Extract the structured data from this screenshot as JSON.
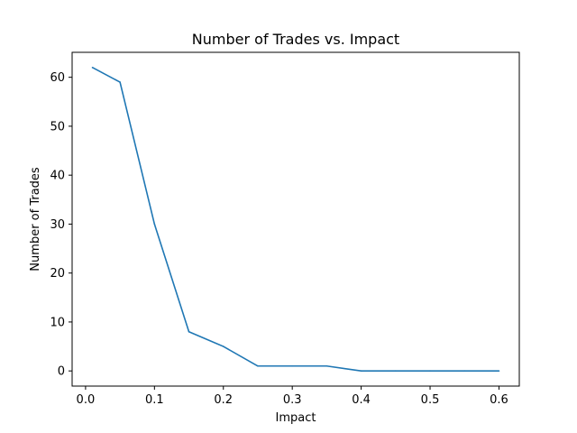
{
  "chart_data": {
    "type": "line",
    "title": "Number of Trades vs. Impact",
    "xlabel": "Impact",
    "ylabel": "Number of Trades",
    "x": [
      0.01,
      0.05,
      0.1,
      0.15,
      0.2,
      0.25,
      0.3,
      0.35,
      0.4,
      0.45,
      0.5,
      0.55,
      0.6
    ],
    "series": [
      {
        "values": [
          62,
          59,
          30,
          8,
          5,
          1,
          1,
          1,
          0,
          0,
          0,
          0,
          0
        ],
        "color": "#1f77b4"
      }
    ],
    "xlim": [
      -0.0195,
      0.6295
    ],
    "ylim": [
      -3.1,
      65.1
    ],
    "xticks": [
      0.0,
      0.1,
      0.2,
      0.3,
      0.4,
      0.5,
      0.6
    ],
    "xtick_labels": [
      "0.0",
      "0.1",
      "0.2",
      "0.3",
      "0.4",
      "0.5",
      "0.6"
    ],
    "yticks": [
      0,
      10,
      20,
      30,
      40,
      50,
      60
    ],
    "ytick_labels": [
      "0",
      "10",
      "20",
      "30",
      "40",
      "50",
      "60"
    ],
    "grid": false,
    "legend": false
  }
}
